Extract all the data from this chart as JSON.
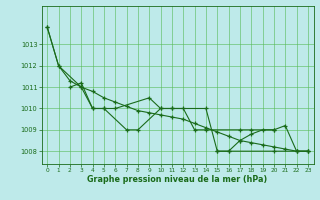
{
  "title": "Graphe pression niveau de la mer (hPa)",
  "background_color": "#beeaea",
  "grid_color": "#55bb55",
  "line_color": "#1a6b1a",
  "xlim": [
    -0.5,
    23.5
  ],
  "ylim": [
    1007.4,
    1014.8
  ],
  "yticks": [
    1008,
    1009,
    1010,
    1011,
    1012,
    1013
  ],
  "xticks": [
    0,
    1,
    2,
    3,
    4,
    5,
    6,
    7,
    8,
    9,
    10,
    11,
    12,
    13,
    14,
    15,
    16,
    17,
    18,
    19,
    20,
    21,
    22,
    23
  ],
  "series": [
    {
      "x": [
        0,
        1,
        3,
        4,
        5,
        7,
        8,
        10,
        11,
        14,
        15,
        16,
        20,
        22,
        23
      ],
      "y": [
        1013.8,
        1012.0,
        1011.0,
        1010.0,
        1010.0,
        1009.0,
        1009.0,
        1010.0,
        1010.0,
        1010.0,
        1008.0,
        1008.0,
        1008.0,
        1008.0,
        1008.0
      ]
    },
    {
      "x": [
        2,
        3,
        4,
        5,
        6,
        9,
        10,
        11,
        12,
        13,
        14,
        17,
        18,
        20
      ],
      "y": [
        1011.0,
        1011.2,
        1010.0,
        1010.0,
        1010.0,
        1010.5,
        1010.0,
        1010.0,
        1010.0,
        1009.0,
        1009.0,
        1009.0,
        1009.0,
        1009.0
      ]
    },
    {
      "x": [
        15,
        16,
        17,
        18,
        19,
        20,
        21,
        22,
        23
      ],
      "y": [
        1008.0,
        1008.0,
        1008.5,
        1008.8,
        1009.0,
        1009.0,
        1009.2,
        1008.0,
        1008.0
      ]
    },
    {
      "x": [
        0,
        1,
        2,
        3,
        4,
        5,
        6,
        7,
        8,
        9,
        10,
        11,
        12,
        13,
        14,
        15,
        16,
        17,
        18,
        19,
        20,
        21,
        22,
        23
      ],
      "y": [
        1013.8,
        1012.0,
        1011.3,
        1011.0,
        1010.8,
        1010.5,
        1010.3,
        1010.1,
        1009.9,
        1009.8,
        1009.7,
        1009.6,
        1009.5,
        1009.3,
        1009.1,
        1008.9,
        1008.7,
        1008.5,
        1008.4,
        1008.3,
        1008.2,
        1008.1,
        1008.0,
        1008.0
      ]
    }
  ]
}
